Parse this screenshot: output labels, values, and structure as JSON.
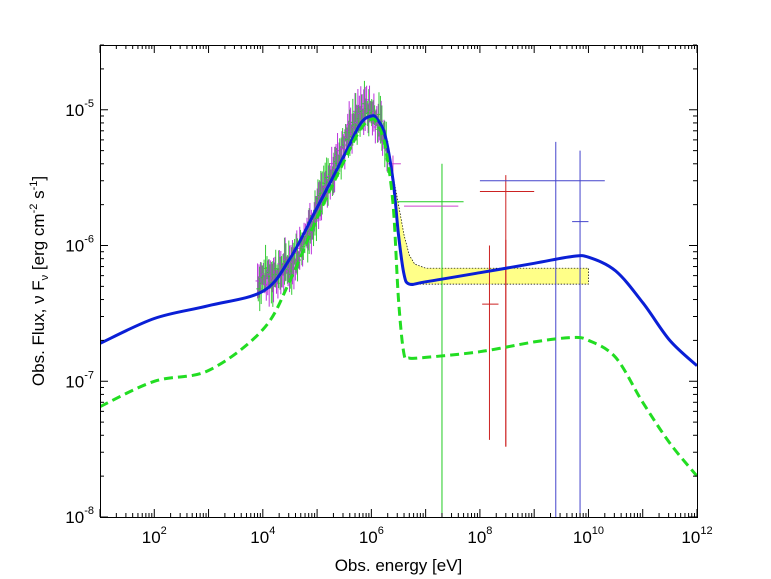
{
  "chart_data": {
    "type": "line",
    "title": "",
    "xlabel": "Obs. energy [eV]",
    "ylabel": {
      "prefix": "Obs. Flux, ",
      "nu": "ν",
      "F": " F",
      "sub": "ν",
      "unit_open": " [erg cm",
      "exp1": "-2",
      "unit_mid": " s",
      "exp2": "-1",
      "unit_close": "]"
    },
    "x_scale": "log",
    "y_scale": "log",
    "xlim": [
      10,
      1000000000000.0
    ],
    "ylim": [
      1e-08,
      3e-05
    ],
    "grid": false,
    "x_ticks": [
      {
        "value": 100,
        "base": "10",
        "exp": "2"
      },
      {
        "value": 10000,
        "base": "10",
        "exp": "4"
      },
      {
        "value": 1000000,
        "base": "10",
        "exp": "6"
      },
      {
        "value": 100000000,
        "base": "10",
        "exp": "8"
      },
      {
        "value": 10000000000,
        "base": "10",
        "exp": "10"
      },
      {
        "value": 1000000000000,
        "base": "10",
        "exp": "12"
      }
    ],
    "y_ticks": [
      {
        "value": 1e-08,
        "base": "10",
        "exp": "-8"
      },
      {
        "value": 1e-07,
        "base": "10",
        "exp": "-7"
      },
      {
        "value": 1e-06,
        "base": "10",
        "exp": "-6"
      },
      {
        "value": 1e-05,
        "base": "10",
        "exp": "-5"
      }
    ],
    "series": [
      {
        "name": "model-total",
        "style": "solid",
        "color": "#0a1fd6",
        "points": [
          [
            10,
            1.9e-07
          ],
          [
            100,
            2.9e-07
          ],
          [
            1000,
            3.6e-07
          ],
          [
            10000,
            4.6e-07
          ],
          [
            31600,
            8e-07
          ],
          [
            100000,
            1.9e-06
          ],
          [
            316000,
            4.6e-06
          ],
          [
            631000,
            7.9e-06
          ],
          [
            1000000,
            9e-06
          ],
          [
            1260000,
            8.6e-06
          ],
          [
            1780000,
            6.5e-06
          ],
          [
            2510000,
            3e-06
          ],
          [
            3160000,
            1.2e-06
          ],
          [
            3980000,
            6.2e-07
          ],
          [
            5010000,
            5.2e-07
          ],
          [
            10000000.0,
            5.4e-07
          ],
          [
            100000000.0,
            6.3e-07
          ],
          [
            1000000000.0,
            7.4e-07
          ],
          [
            5000000000.0,
            8.3e-07
          ],
          [
            10000000000.0,
            8.2e-07
          ],
          [
            31600000000.0,
            6.5e-07
          ],
          [
            100000000000.0,
            3.8e-07
          ],
          [
            316000000000.0,
            2e-07
          ],
          [
            1000000000000.0,
            1.3e-07
          ]
        ]
      },
      {
        "name": "model-component",
        "style": "dashed",
        "color": "#22dd22",
        "points": [
          [
            10,
            6.5e-08
          ],
          [
            100,
            1e-07
          ],
          [
            1000,
            1.2e-07
          ],
          [
            10000,
            2.4e-07
          ],
          [
            31600,
            5.5e-07
          ],
          [
            100000,
            1.6e-06
          ],
          [
            316000,
            4.2e-06
          ],
          [
            631000,
            7.2e-06
          ],
          [
            1000000,
            8.5e-06
          ],
          [
            1260000,
            8e-06
          ],
          [
            1780000,
            5.5e-06
          ],
          [
            2510000,
            2e-06
          ],
          [
            3160000,
            4e-07
          ],
          [
            3980000,
            1.6e-07
          ],
          [
            5010000,
            1.48e-07
          ],
          [
            10000000.0,
            1.5e-07
          ],
          [
            100000000.0,
            1.65e-07
          ],
          [
            1000000000.0,
            1.95e-07
          ],
          [
            5000000000.0,
            2.1e-07
          ],
          [
            10000000000.0,
            2e-07
          ],
          [
            31600000000.0,
            1.5e-07
          ],
          [
            100000000000.0,
            7e-08
          ],
          [
            316000000000.0,
            3.5e-08
          ],
          [
            1000000000000.0,
            2e-08
          ]
        ]
      }
    ],
    "band": {
      "name": "uncertainty-band",
      "color": "#ffff88",
      "x": [
        2500000,
        3160000,
        4000000,
        5000000,
        6300000,
        10000000.0,
        100000000.0,
        10000000000.0
      ],
      "upper": [
        3.3e-06,
        2e-06,
        1.2e-06,
        8.5e-07,
        7.3e-07,
        6.8e-07,
        6.8e-07,
        6.8e-07
      ],
      "lower": [
        2.8e-06,
        1.1e-06,
        5.8e-07,
        5.2e-07,
        5.2e-07,
        5.2e-07,
        5.2e-07,
        5.2e-07
      ]
    },
    "data_points": [
      {
        "name": "green-point-1",
        "color": "#22cc22",
        "x": 20000000.0,
        "y": 2.1e-06,
        "xerr": [
          3000000.0,
          50000000.0
        ],
        "yerr": [
          1e-08,
          4e-06
        ]
      },
      {
        "name": "magenta-point-1",
        "color": "#cc44cc",
        "x": 12000000.0,
        "y": 1.95e-06,
        "xerr": [
          4000000.0,
          40000000.0
        ],
        "yerr": [
          1.95e-06,
          1.95e-06
        ]
      },
      {
        "name": "magenta-point-2",
        "color": "#cc44cc",
        "x": 2500000.0,
        "y": 4e-06,
        "xerr": [
          2000000.0,
          3500000.0
        ],
        "yerr": [
          3.5e-06,
          4.6e-06
        ]
      },
      {
        "name": "red-point-1",
        "color": "#cc2222",
        "x": 300000000.0,
        "y": 2.5e-06,
        "xerr": [
          100000000.0,
          1000000000.0
        ],
        "yerr": [
          3.3e-08,
          3.3e-06
        ]
      },
      {
        "name": "red-point-2",
        "color": "#cc2222",
        "x": 150000000.0,
        "y": 3.7e-07,
        "xerr": [
          110000000.0,
          220000000.0
        ],
        "yerr": [
          3.7e-08,
          1e-06
        ]
      },
      {
        "name": "red-point-3",
        "color": "#cc2222",
        "x": 300000000.0,
        "y": 3.3e-08,
        "xerr": [
          300000000.0,
          300000000.0
        ],
        "yerr": [
          3.3e-08,
          1.1e-06
        ]
      },
      {
        "name": "blue-point-1",
        "color": "#4444cc",
        "x": 2500000000.0,
        "y": 3e-06,
        "xerr": [
          100000000.0,
          20000000000.0
        ],
        "yerr": [
          1e-08,
          5.8e-06
        ]
      },
      {
        "name": "blue-point-2",
        "color": "#4444cc",
        "x": 7000000000.0,
        "y": 1.5e-06,
        "xerr": [
          5000000000.0,
          10000000000.0
        ],
        "yerr": [
          1e-08,
          5e-06
        ]
      }
    ],
    "spectrum_band": {
      "name": "spectral-data",
      "colors": [
        "#bb33dd",
        "#33cc33"
      ],
      "x": [
        8000.0,
        10000.0,
        20000.0,
        40000.0,
        80000.0,
        150000.0,
        300000.0,
        500000.0,
        800000.0,
        1200000.0,
        1600000.0,
        2000000.0
      ],
      "y": [
        5.5e-07,
        5.8e-07,
        6.3e-07,
        8e-07,
        1.5e-06,
        2.8e-06,
        5.5e-06,
        8.5e-06,
        1.05e-05,
        9e-06,
        7e-06,
        5e-06
      ]
    }
  }
}
